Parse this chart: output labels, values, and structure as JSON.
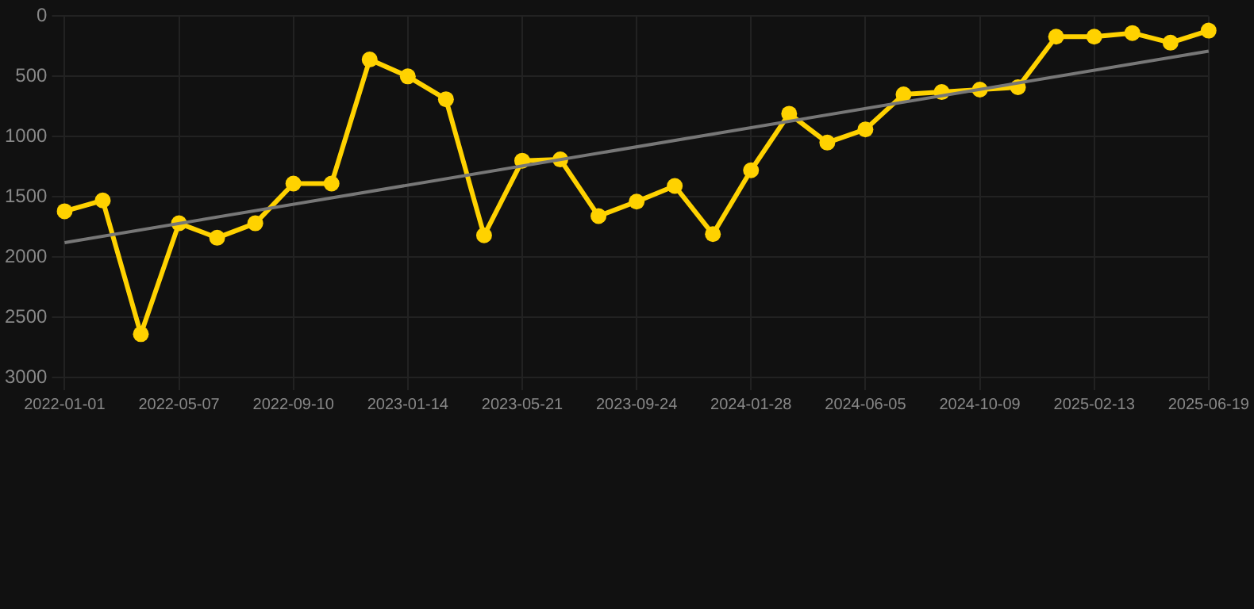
{
  "chart_data": {
    "type": "line",
    "categories": [
      "2022-01-01",
      null,
      null,
      "2022-05-07",
      null,
      null,
      "2022-09-10",
      null,
      null,
      "2023-01-14",
      null,
      null,
      "2023-05-21",
      null,
      null,
      "2023-09-24",
      null,
      null,
      "2024-01-28",
      null,
      null,
      "2024-06-05",
      null,
      null,
      "2024-10-09",
      null,
      null,
      "2025-02-13",
      null,
      null,
      "2025-06-19"
    ],
    "series": [
      {
        "color": "#ffd200",
        "marker": "circle",
        "values": [
          1620,
          1530,
          2640,
          1720,
          1840,
          1720,
          1390,
          1390,
          360,
          500,
          690,
          1820,
          1200,
          1190,
          1660,
          1540,
          1410,
          1810,
          1280,
          810,
          1050,
          940,
          650,
          630,
          610,
          590,
          170,
          170,
          140,
          220,
          120
        ]
      },
      {
        "color": "#777777",
        "marker": "none",
        "values": [
          1880,
          null,
          null,
          null,
          null,
          null,
          null,
          null,
          null,
          null,
          null,
          null,
          null,
          null,
          null,
          null,
          null,
          null,
          null,
          null,
          null,
          null,
          null,
          null,
          null,
          null,
          null,
          null,
          null,
          null,
          290
        ]
      }
    ],
    "ylim": [
      3000,
      0
    ],
    "yticks": [
      0,
      500,
      1000,
      1500,
      2000,
      2500,
      3000
    ],
    "grid": true,
    "legend": false
  }
}
